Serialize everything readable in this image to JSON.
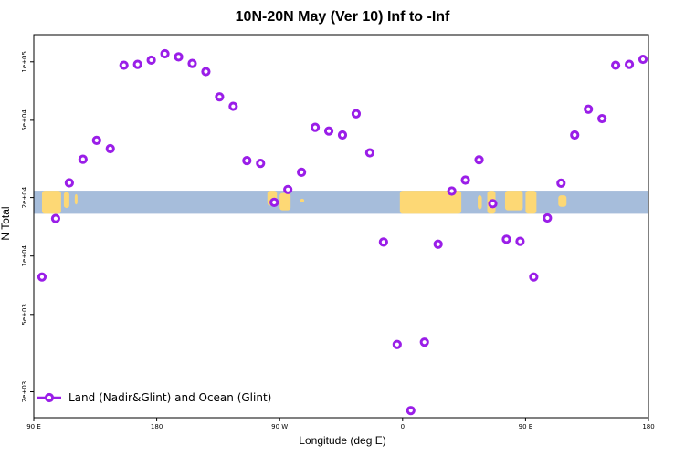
{
  "chart_data": {
    "type": "scatter",
    "title": "10N-20N May (Ver 10)   Inf to -Inf",
    "xlabel": "Longitude (deg E)",
    "ylabel": "N Total",
    "x_ticks": [
      "90 E",
      "180",
      "90 W",
      "0",
      "90 E",
      "180"
    ],
    "x_tick_values": [
      90,
      180,
      270,
      360,
      450,
      540
    ],
    "xlim": [
      90,
      540
    ],
    "y_scale": "log",
    "y_ticks": [
      "2e+03",
      "5e+03",
      "1e+04",
      "2e+04",
      "5e+04",
      "1e+05"
    ],
    "y_tick_values": [
      2000,
      5000,
      10000,
      20000,
      50000,
      100000
    ],
    "ylim": [
      1470,
      138000
    ],
    "background_band": {
      "y_range": [
        16500,
        21700
      ],
      "ocean_color": "#a6bddb",
      "land_color": "#fdd875"
    },
    "legend": {
      "label": "Land (Nadir&Glint) and Ocean (Glint)",
      "position": "bottom-left"
    },
    "series": [
      {
        "name": "Land (Nadir&Glint) and Ocean (Glint)",
        "color": "#9a1ee8",
        "x": [
          96,
          106,
          116,
          126,
          136,
          146,
          156,
          166,
          176,
          186,
          196,
          206,
          216,
          226,
          236,
          246,
          256,
          266,
          276,
          286,
          296,
          306,
          316,
          326,
          336,
          346,
          356,
          366,
          376,
          386,
          396,
          406,
          416,
          426,
          436,
          446,
          456,
          466,
          476,
          486,
          496,
          506,
          516,
          526,
          536
        ],
        "y": [
          7800,
          15600,
          23800,
          31500,
          39400,
          35700,
          96000,
          97000,
          102000,
          110000,
          106000,
          98000,
          89000,
          66000,
          59000,
          31000,
          30000,
          18900,
          22000,
          27000,
          46000,
          44000,
          42000,
          54000,
          34000,
          11800,
          3500,
          1600,
          3600,
          11500,
          21600,
          24600,
          31300,
          18600,
          12200,
          11900,
          7800,
          15700,
          23700,
          42000,
          57000,
          51000,
          96000,
          97000,
          103000
        ]
      }
    ]
  },
  "colors": {
    "marker": "#9a1ee8",
    "ocean": "#a6bddb",
    "land": "#fdd875"
  }
}
